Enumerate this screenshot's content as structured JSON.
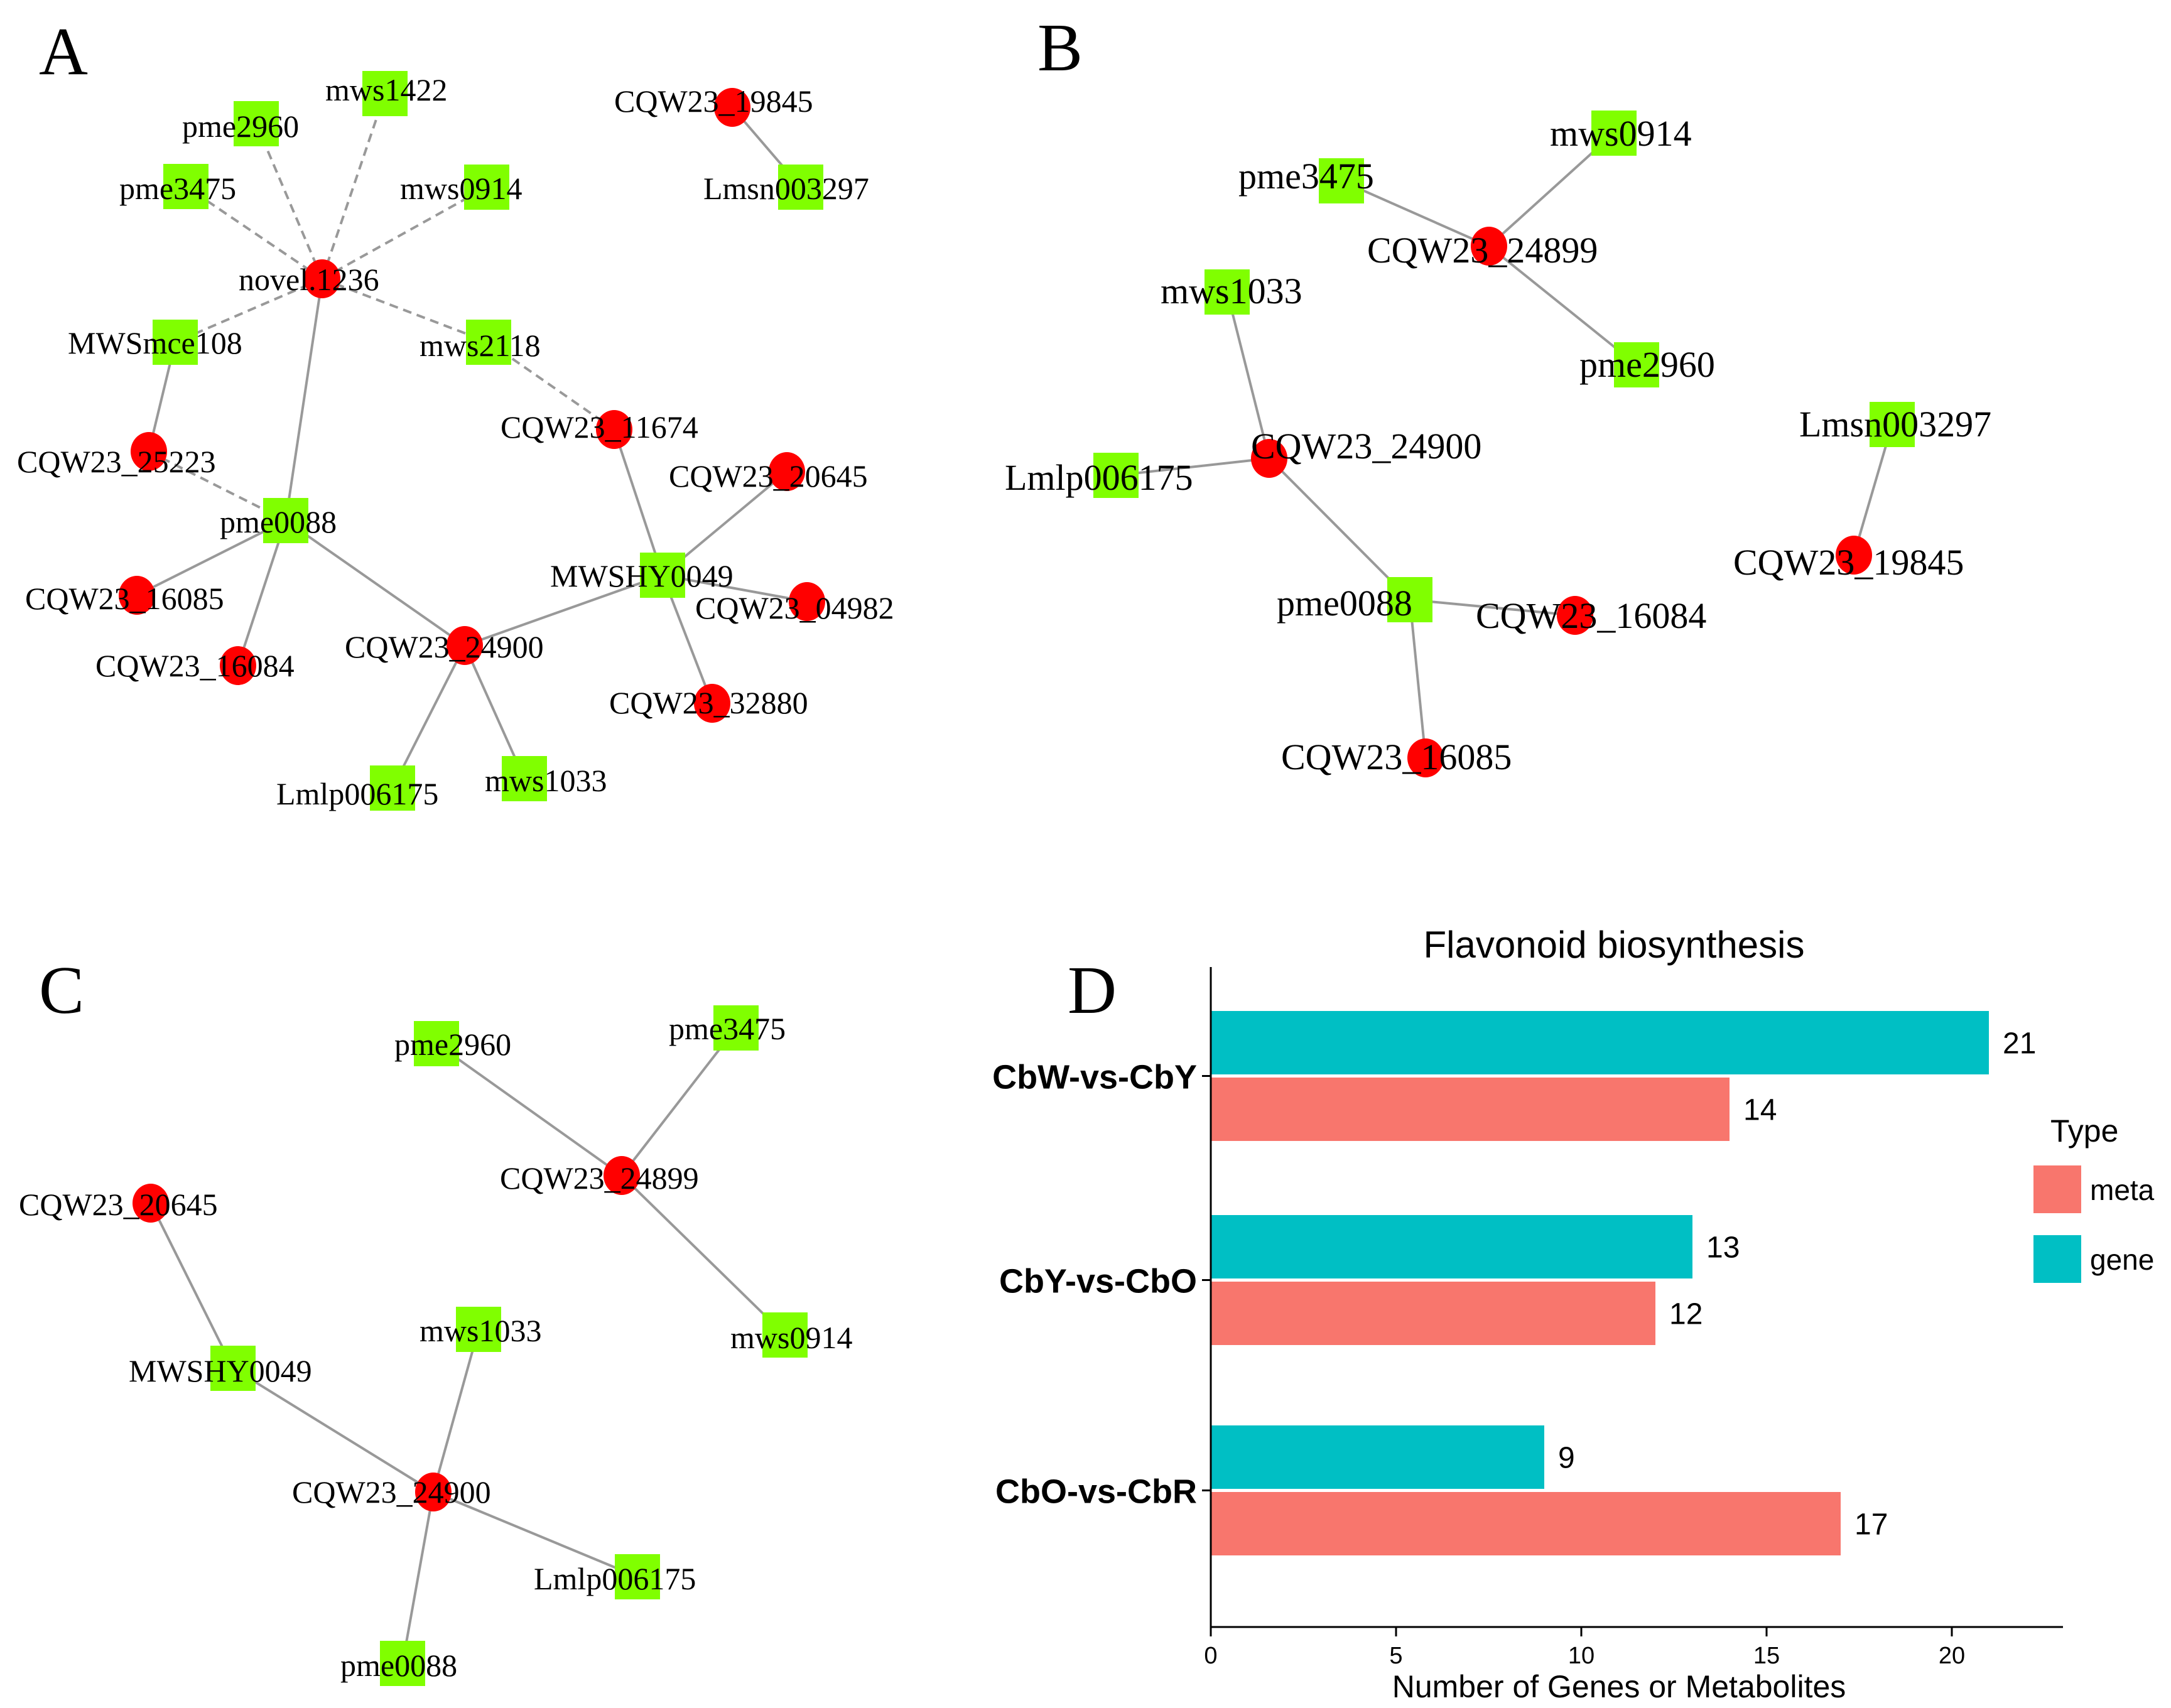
{
  "colors": {
    "gene_node": "#ff0000",
    "metabolite_node": "#80ff00",
    "edge": "#999999",
    "bar_meta": "#f8766d",
    "bar_gene": "#00bfc4"
  },
  "panels": {
    "A": {
      "letter": "A",
      "nodes": [
        {
          "id": "novel.1236",
          "label": "novel.1236",
          "type": "gene"
        },
        {
          "id": "mws1422",
          "label": "mws1422",
          "type": "metabolite"
        },
        {
          "id": "pme2960",
          "label": "pme2960",
          "type": "metabolite"
        },
        {
          "id": "pme3475",
          "label": "pme3475",
          "type": "metabolite"
        },
        {
          "id": "mws0914",
          "label": "mws0914",
          "type": "metabolite"
        },
        {
          "id": "MWSmce108",
          "label": "MWSmce108",
          "type": "metabolite"
        },
        {
          "id": "mws2118",
          "label": "mws2118",
          "type": "metabolite"
        },
        {
          "id": "CQW23_19845",
          "label": "CQW23_19845",
          "type": "gene"
        },
        {
          "id": "Lmsn003297",
          "label": "Lmsn003297",
          "type": "metabolite"
        },
        {
          "id": "CQW23_25223",
          "label": "CQW23_25223",
          "type": "gene"
        },
        {
          "id": "CQW23_11674",
          "label": "CQW23_11674",
          "type": "gene"
        },
        {
          "id": "CQW23_20645",
          "label": "CQW23_20645",
          "type": "gene"
        },
        {
          "id": "pme0088",
          "label": "pme0088",
          "type": "metabolite"
        },
        {
          "id": "MWSHY0049",
          "label": "MWSHY0049",
          "type": "metabolite"
        },
        {
          "id": "CQW23_04982",
          "label": "CQW23_04982",
          "type": "gene"
        },
        {
          "id": "CQW23_16085",
          "label": "CQW23_16085",
          "type": "gene"
        },
        {
          "id": "CQW23_16084",
          "label": "CQW23_16084",
          "type": "gene"
        },
        {
          "id": "CQW23_24900",
          "label": "CQW23_24900",
          "type": "gene"
        },
        {
          "id": "CQW23_32880",
          "label": "CQW23_32880",
          "type": "gene"
        },
        {
          "id": "Lmlp006175",
          "label": "Lmlp006175",
          "type": "metabolite"
        },
        {
          "id": "mws1033",
          "label": "mws1033",
          "type": "metabolite"
        }
      ],
      "edges": [
        {
          "from": "novel.1236",
          "to": "mws1422",
          "style": "dashed"
        },
        {
          "from": "novel.1236",
          "to": "pme2960",
          "style": "dashed"
        },
        {
          "from": "novel.1236",
          "to": "pme3475",
          "style": "dashed"
        },
        {
          "from": "novel.1236",
          "to": "mws0914",
          "style": "dashed"
        },
        {
          "from": "novel.1236",
          "to": "MWSmce108",
          "style": "dashed"
        },
        {
          "from": "novel.1236",
          "to": "mws2118",
          "style": "dashed"
        },
        {
          "from": "novel.1236",
          "to": "pme0088",
          "style": "solid"
        },
        {
          "from": "mws2118",
          "to": "CQW23_11674",
          "style": "dashed"
        },
        {
          "from": "MWSmce108",
          "to": "CQW23_25223",
          "style": "solid"
        },
        {
          "from": "CQW23_25223",
          "to": "pme0088",
          "style": "dashed"
        },
        {
          "from": "CQW23_19845",
          "to": "Lmsn003297",
          "style": "solid"
        },
        {
          "from": "pme0088",
          "to": "CQW23_16085",
          "style": "solid"
        },
        {
          "from": "pme0088",
          "to": "CQW23_16084",
          "style": "solid"
        },
        {
          "from": "pme0088",
          "to": "CQW23_24900",
          "style": "solid"
        },
        {
          "from": "CQW23_24900",
          "to": "MWSHY0049",
          "style": "solid"
        },
        {
          "from": "CQW23_24900",
          "to": "Lmlp006175",
          "style": "solid"
        },
        {
          "from": "CQW23_24900",
          "to": "mws1033",
          "style": "solid"
        },
        {
          "from": "MWSHY0049",
          "to": "CQW23_11674",
          "style": "solid"
        },
        {
          "from": "MWSHY0049",
          "to": "CQW23_20645",
          "style": "solid"
        },
        {
          "from": "MWSHY0049",
          "to": "CQW23_04982",
          "style": "solid"
        },
        {
          "from": "MWSHY0049",
          "to": "CQW23_32880",
          "style": "solid"
        }
      ]
    },
    "B": {
      "letter": "B",
      "nodes": [
        {
          "id": "mws0914",
          "label": "mws0914",
          "type": "metabolite"
        },
        {
          "id": "pme3475",
          "label": "pme3475",
          "type": "metabolite"
        },
        {
          "id": "CQW23_24899",
          "label": "CQW23_24899",
          "type": "gene"
        },
        {
          "id": "pme2960",
          "label": "pme2960",
          "type": "metabolite"
        },
        {
          "id": "mws1033",
          "label": "mws1033",
          "type": "metabolite"
        },
        {
          "id": "CQW23_24900",
          "label": "CQW23_24900",
          "type": "gene"
        },
        {
          "id": "Lmlp006175",
          "label": "Lmlp006175",
          "type": "metabolite"
        },
        {
          "id": "pme0088",
          "label": "pme0088",
          "type": "metabolite"
        },
        {
          "id": "CQW23_16084",
          "label": "CQW23_16084",
          "type": "gene"
        },
        {
          "id": "CQW23_16085",
          "label": "CQW23_16085",
          "type": "gene"
        },
        {
          "id": "Lmsn003297",
          "label": "Lmsn003297",
          "type": "metabolite"
        },
        {
          "id": "CQW23_19845",
          "label": "CQW23_19845",
          "type": "gene"
        }
      ],
      "edges": [
        {
          "from": "CQW23_24899",
          "to": "mws0914",
          "style": "solid"
        },
        {
          "from": "CQW23_24899",
          "to": "pme3475",
          "style": "solid"
        },
        {
          "from": "CQW23_24899",
          "to": "pme2960",
          "style": "solid"
        },
        {
          "from": "CQW23_24900",
          "to": "mws1033",
          "style": "solid"
        },
        {
          "from": "CQW23_24900",
          "to": "Lmlp006175",
          "style": "solid"
        },
        {
          "from": "CQW23_24900",
          "to": "pme0088",
          "style": "solid"
        },
        {
          "from": "pme0088",
          "to": "CQW23_16084",
          "style": "solid"
        },
        {
          "from": "pme0088",
          "to": "CQW23_16085",
          "style": "solid"
        },
        {
          "from": "Lmsn003297",
          "to": "CQW23_19845",
          "style": "solid"
        }
      ]
    },
    "C": {
      "letter": "C",
      "nodes": [
        {
          "id": "pme2960",
          "label": "pme2960",
          "type": "metabolite"
        },
        {
          "id": "pme3475",
          "label": "pme3475",
          "type": "metabolite"
        },
        {
          "id": "CQW23_24899",
          "label": "CQW23_24899",
          "type": "gene"
        },
        {
          "id": "mws0914",
          "label": "mws0914",
          "type": "metabolite"
        },
        {
          "id": "CQW23_20645",
          "label": "CQW23_20645",
          "type": "gene"
        },
        {
          "id": "MWSHY0049",
          "label": "MWSHY0049",
          "type": "metabolite"
        },
        {
          "id": "mws1033",
          "label": "mws1033",
          "type": "metabolite"
        },
        {
          "id": "CQW23_24900",
          "label": "CQW23_24900",
          "type": "gene"
        },
        {
          "id": "Lmlp006175",
          "label": "Lmlp006175",
          "type": "metabolite"
        },
        {
          "id": "pme0088",
          "label": "pme0088",
          "type": "metabolite"
        }
      ],
      "edges": [
        {
          "from": "CQW23_24899",
          "to": "pme2960",
          "style": "solid"
        },
        {
          "from": "CQW23_24899",
          "to": "pme3475",
          "style": "solid"
        },
        {
          "from": "CQW23_24899",
          "to": "mws0914",
          "style": "solid"
        },
        {
          "from": "CQW23_20645",
          "to": "MWSHY0049",
          "style": "solid"
        },
        {
          "from": "MWSHY0049",
          "to": "CQW23_24900",
          "style": "solid"
        },
        {
          "from": "CQW23_24900",
          "to": "mws1033",
          "style": "solid"
        },
        {
          "from": "CQW23_24900",
          "to": "Lmlp006175",
          "style": "solid"
        },
        {
          "from": "CQW23_24900",
          "to": "pme0088",
          "style": "solid"
        }
      ]
    },
    "D": {
      "letter": "D"
    }
  },
  "chart_data": {
    "type": "bar",
    "orientation": "horizontal",
    "title": "Flavonoid biosynthesis",
    "xlabel": "Number of Genes or Metabolites",
    "ylabel": "",
    "categories": [
      "CbW-vs-CbY",
      "CbY-vs-CbO",
      "CbO-vs-CbR"
    ],
    "series": [
      {
        "name": "gene",
        "color": "#00bfc4",
        "values": [
          21,
          13,
          9
        ]
      },
      {
        "name": "meta",
        "color": "#f8766d",
        "values": [
          14,
          12,
          17
        ]
      }
    ],
    "xlim": [
      0,
      23
    ],
    "xticks": [
      0,
      5,
      10,
      15,
      20
    ],
    "grid": false,
    "legend": {
      "title": "Type",
      "placement": "right",
      "entries": [
        {
          "name": "meta",
          "color": "#f8766d"
        },
        {
          "name": "gene",
          "color": "#00bfc4"
        }
      ]
    }
  }
}
